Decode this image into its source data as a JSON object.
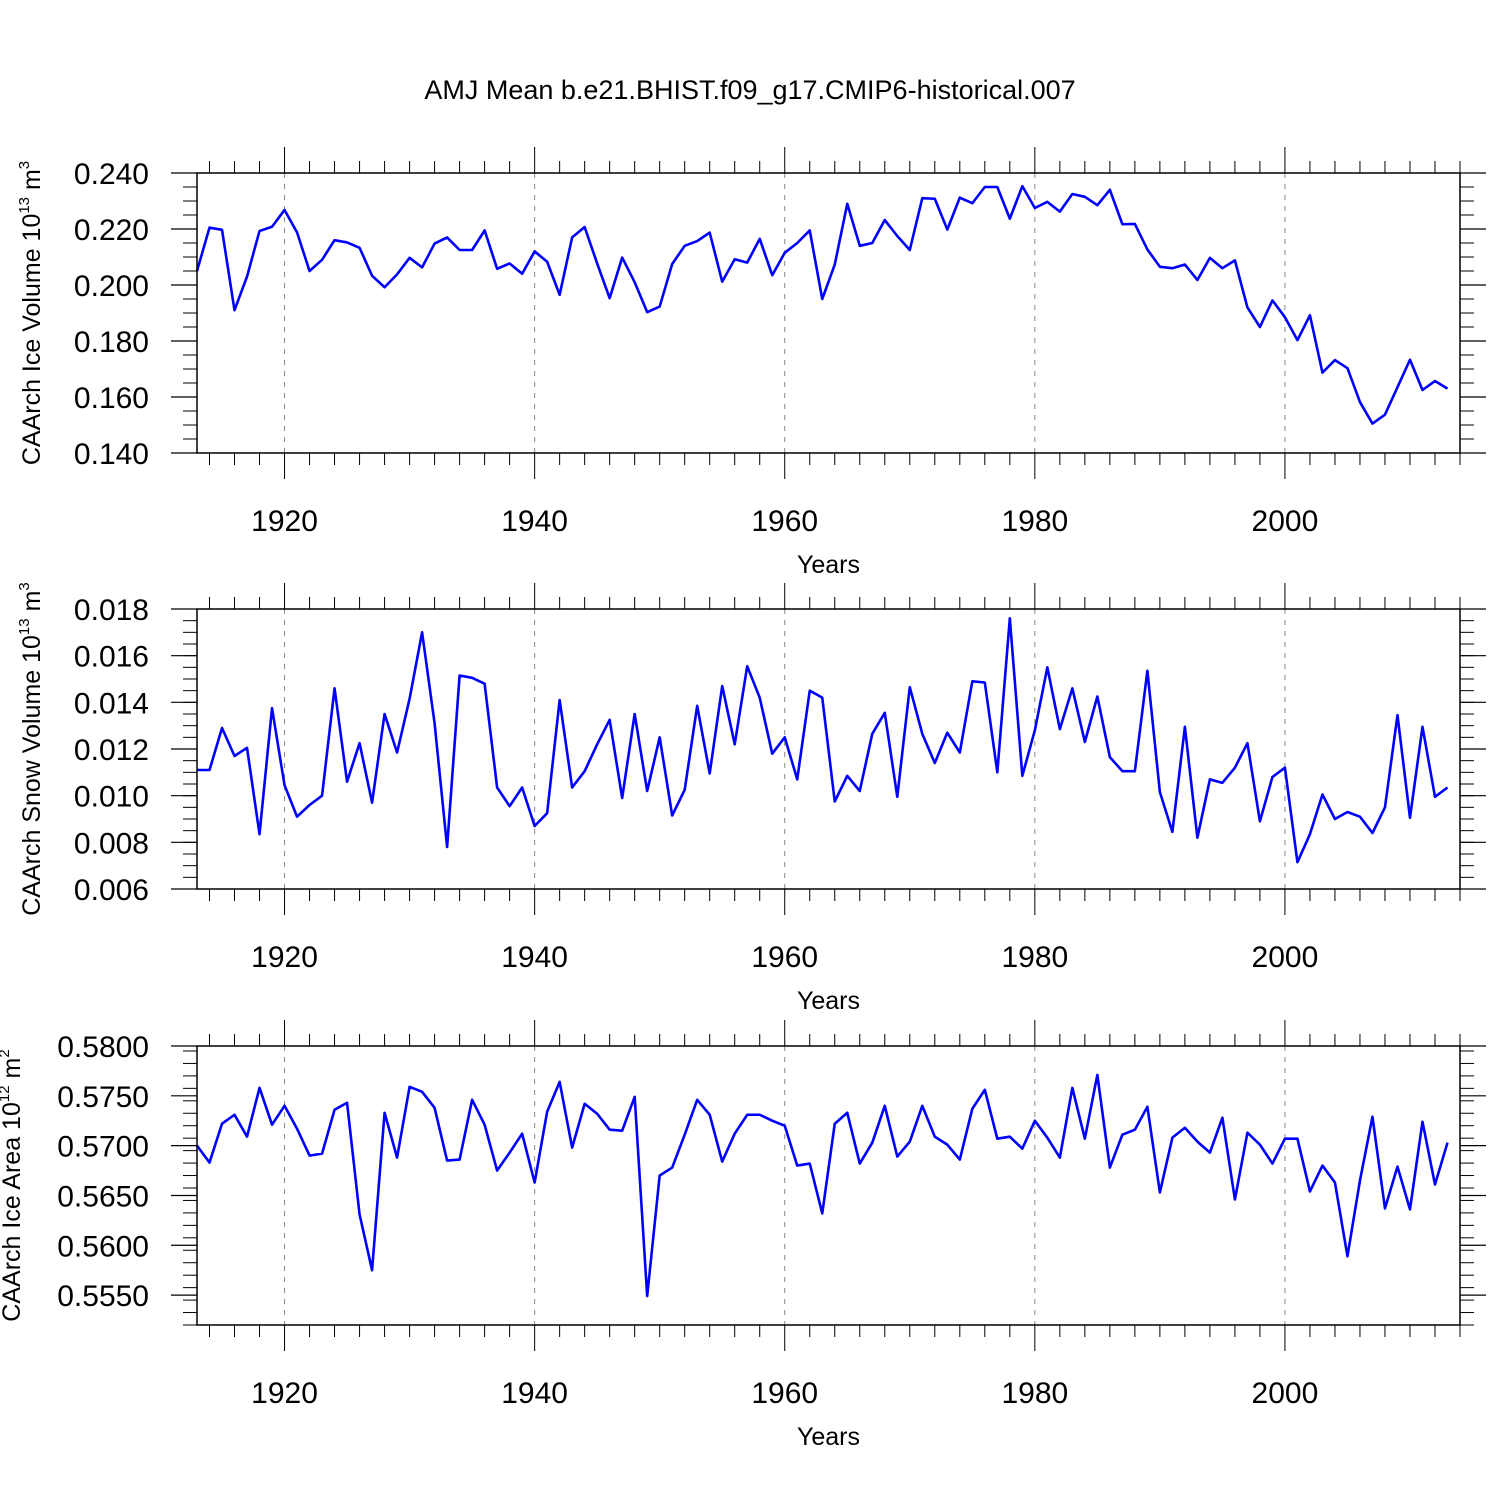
{
  "title": "AMJ Mean b.e21.BHIST.f09_g17.CMIP6-historical.007",
  "colors": {
    "line": "#0000ff",
    "axis": "#000000",
    "grid": "#888888"
  },
  "chart_data": [
    {
      "type": "line",
      "name": "ice-volume",
      "ylabel": {
        "text": "CAArch Ice Volume 10",
        "exp": "13",
        "unit": " m",
        "unit_exp": "3"
      },
      "xlabel": "Years",
      "xlim": [
        1913,
        2014
      ],
      "ylim": [
        0.14,
        0.24
      ],
      "yticks": [
        "0.140",
        "0.160",
        "0.180",
        "0.200",
        "0.220",
        "0.240"
      ],
      "xticks": [
        "1920",
        "1940",
        "1960",
        "1980",
        "2000"
      ],
      "grid_x": [
        1920,
        1940,
        1960,
        1980,
        2000
      ],
      "start_year": 1913,
      "values": [
        0.205,
        0.2205,
        0.2197,
        0.191,
        0.203,
        0.2193,
        0.2208,
        0.2268,
        0.2188,
        0.205,
        0.209,
        0.216,
        0.2152,
        0.2133,
        0.2033,
        0.1992,
        0.2038,
        0.2097,
        0.2063,
        0.2148,
        0.217,
        0.2125,
        0.2125,
        0.2195,
        0.2058,
        0.2077,
        0.204,
        0.212,
        0.2083,
        0.1965,
        0.217,
        0.2207,
        0.2077,
        0.1953,
        0.2098,
        0.201,
        0.1903,
        0.1923,
        0.2075,
        0.214,
        0.2157,
        0.2187,
        0.2012,
        0.2092,
        0.208,
        0.2165,
        0.2035,
        0.2115,
        0.215,
        0.2195,
        0.195,
        0.2073,
        0.229,
        0.214,
        0.215,
        0.2232,
        0.2175,
        0.2125,
        0.231,
        0.2308,
        0.2198,
        0.2312,
        0.2292,
        0.235,
        0.235,
        0.2237,
        0.2353,
        0.2275,
        0.2297,
        0.2262,
        0.2325,
        0.2315,
        0.2285,
        0.234,
        0.2217,
        0.2218,
        0.2127,
        0.2065,
        0.206,
        0.2073,
        0.2018,
        0.2097,
        0.206,
        0.2088,
        0.192,
        0.185,
        0.1945,
        0.1885,
        0.1803,
        0.1892,
        0.1687,
        0.1732,
        0.1703,
        0.1582,
        0.1505,
        0.1537,
        0.1635,
        0.1733,
        0.1625,
        0.1657,
        0.163
      ]
    },
    {
      "type": "line",
      "name": "snow-volume",
      "ylabel": {
        "text": "CAArch Snow Volume 10",
        "exp": "13",
        "unit": " m",
        "unit_exp": "3"
      },
      "xlabel": "Years",
      "xlim": [
        1913,
        2014
      ],
      "ylim": [
        0.006,
        0.018
      ],
      "yticks": [
        "0.006",
        "0.008",
        "0.010",
        "0.012",
        "0.014",
        "0.016",
        "0.018"
      ],
      "xticks": [
        "1920",
        "1940",
        "1960",
        "1980",
        "2000"
      ],
      "grid_x": [
        1920,
        1940,
        1960,
        1980,
        2000
      ],
      "start_year": 1913,
      "values": [
        0.0111,
        0.0111,
        0.0129,
        0.0117,
        0.01205,
        0.00835,
        0.01375,
        0.01045,
        0.0091,
        0.0096,
        0.01,
        0.0146,
        0.0106,
        0.01225,
        0.0097,
        0.0135,
        0.01185,
        0.01415,
        0.017,
        0.0131,
        0.0078,
        0.01515,
        0.01505,
        0.0148,
        0.01035,
        0.00955,
        0.01035,
        0.0087,
        0.00925,
        0.0141,
        0.01035,
        0.01105,
        0.0122,
        0.01325,
        0.0099,
        0.0135,
        0.0102,
        0.0125,
        0.00915,
        0.01025,
        0.01385,
        0.01095,
        0.0147,
        0.0122,
        0.01555,
        0.0142,
        0.0118,
        0.0125,
        0.0107,
        0.0145,
        0.0142,
        0.00975,
        0.01085,
        0.0102,
        0.01265,
        0.01355,
        0.00995,
        0.01465,
        0.01265,
        0.0114,
        0.0127,
        0.01185,
        0.0149,
        0.01485,
        0.011,
        0.0176,
        0.01085,
        0.0128,
        0.0155,
        0.01285,
        0.0146,
        0.0123,
        0.01425,
        0.01165,
        0.01105,
        0.01105,
        0.01535,
        0.01015,
        0.00845,
        0.01295,
        0.0082,
        0.0107,
        0.01055,
        0.0112,
        0.01225,
        0.0089,
        0.0108,
        0.0112,
        0.00715,
        0.00835,
        0.01005,
        0.009,
        0.0093,
        0.0091,
        0.0084,
        0.0095,
        0.01345,
        0.00905,
        0.01295,
        0.00995,
        0.01035
      ]
    },
    {
      "type": "line",
      "name": "ice-area",
      "ylabel": {
        "text": "CAArch Ice Area 10",
        "exp": "12",
        "unit": " m",
        "unit_exp": "2"
      },
      "xlabel": "Years",
      "xlim": [
        1913,
        2014
      ],
      "ylim": [
        0.552,
        0.58
      ],
      "yticks": [
        "0.5550",
        "0.5600",
        "0.5650",
        "0.5700",
        "0.5750",
        "0.5800"
      ],
      "ytick_values": [
        0.555,
        0.56,
        0.565,
        0.57,
        0.575,
        0.58
      ],
      "xticks": [
        "1920",
        "1940",
        "1960",
        "1980",
        "2000"
      ],
      "grid_x": [
        1920,
        1940,
        1960,
        1980,
        2000
      ],
      "start_year": 1913,
      "values": [
        0.57,
        0.5683,
        0.5722,
        0.5731,
        0.5709,
        0.5758,
        0.5721,
        0.574,
        0.5717,
        0.569,
        0.5692,
        0.5736,
        0.5743,
        0.5631,
        0.5575,
        0.5733,
        0.5688,
        0.5759,
        0.5754,
        0.5738,
        0.5685,
        0.5686,
        0.5746,
        0.5721,
        0.5675,
        0.5693,
        0.5712,
        0.5663,
        0.5734,
        0.5764,
        0.5698,
        0.5742,
        0.5732,
        0.5716,
        0.5715,
        0.5749,
        0.5549,
        0.567,
        0.5678,
        0.5711,
        0.5746,
        0.5731,
        0.5684,
        0.5712,
        0.5731,
        0.5731,
        0.5725,
        0.572,
        0.568,
        0.5682,
        0.5632,
        0.5722,
        0.5733,
        0.5682,
        0.5703,
        0.574,
        0.5689,
        0.5704,
        0.574,
        0.5709,
        0.5701,
        0.5686,
        0.5737,
        0.5756,
        0.5707,
        0.5709,
        0.5697,
        0.5725,
        0.5708,
        0.5688,
        0.5758,
        0.5707,
        0.5771,
        0.5678,
        0.5711,
        0.5716,
        0.5739,
        0.5653,
        0.5708,
        0.5718,
        0.5704,
        0.5693,
        0.5728,
        0.5646,
        0.5713,
        0.5701,
        0.5682,
        0.5707,
        0.5707,
        0.5654,
        0.568,
        0.5663,
        0.5589,
        0.5665,
        0.5729,
        0.5637,
        0.5679,
        0.5636,
        0.5724,
        0.5661,
        0.5703
      ]
    }
  ]
}
